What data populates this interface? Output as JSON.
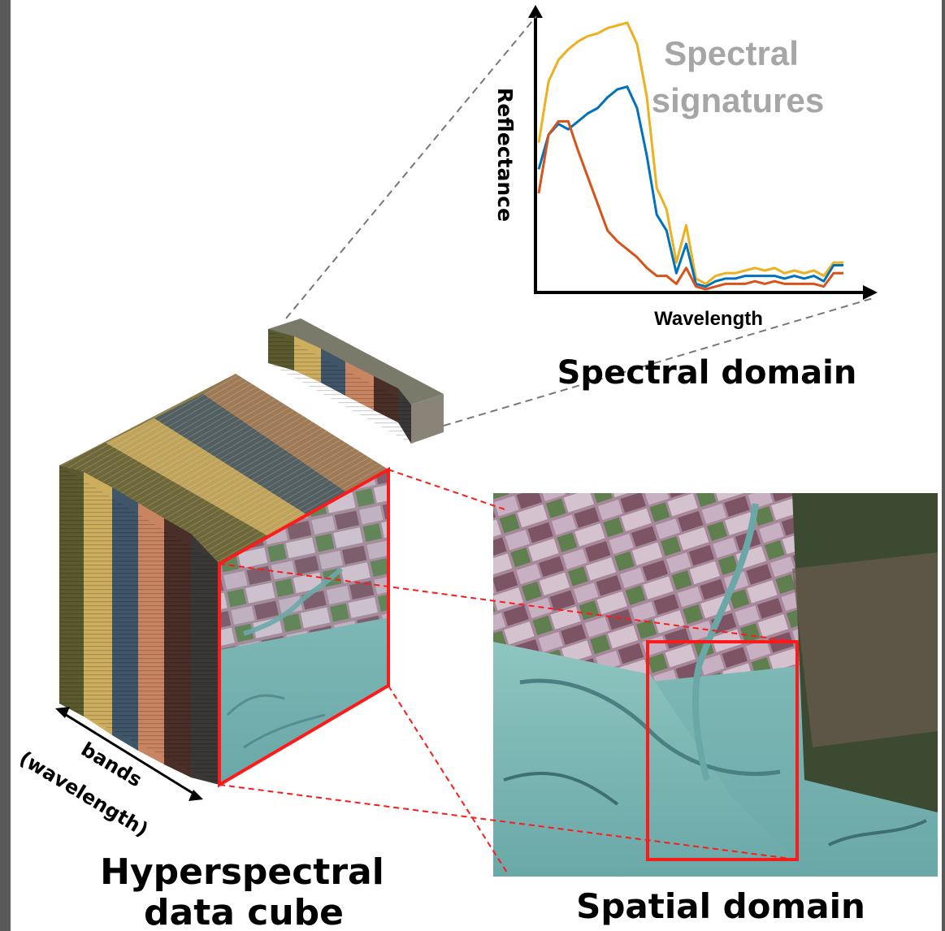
{
  "labels": {
    "spectral_signatures_line1": "Spectral",
    "spectral_signatures_line2": "signatures",
    "y_axis": "Reflectance",
    "x_axis": "Wavelength",
    "spectral_domain": "Spectral domain",
    "spatial_domain": "Spatial domain",
    "cube_line1": "Hyperspectral",
    "cube_line2": "data cube",
    "bands_line1": "bands",
    "bands_line2": "(wavelength)"
  },
  "colors": {
    "series_yellow": "#EDB120",
    "series_blue": "#0072BD",
    "series_orange": "#D95319",
    "highlight_red": "#FF1A1A",
    "title_gray": "#A6A6A6",
    "band_olive": "#5A5A2E",
    "band_gold": "#CDAE5E",
    "band_slate": "#3F5568",
    "band_salmon": "#C98562",
    "band_brown": "#4A2E28",
    "band_gray": "#3A3836"
  },
  "chart_data": {
    "type": "line",
    "title": "Spectral signatures",
    "xlabel": "Wavelength",
    "ylabel": "Reflectance",
    "grid": false,
    "series": [
      {
        "color": "#EDB120",
        "values": [
          0.55,
          0.78,
          0.86,
          0.9,
          0.93,
          0.95,
          0.96,
          0.98,
          0.99,
          1.0,
          0.92,
          0.72,
          0.38,
          0.3,
          0.1,
          0.24,
          0.04,
          0.02,
          0.05,
          0.06,
          0.06,
          0.07,
          0.08,
          0.07,
          0.08,
          0.06,
          0.07,
          0.06,
          0.07,
          0.05,
          0.1,
          0.1
        ]
      },
      {
        "color": "#0072BD",
        "values": [
          0.45,
          0.58,
          0.62,
          0.6,
          0.63,
          0.66,
          0.68,
          0.72,
          0.75,
          0.76,
          0.68,
          0.5,
          0.28,
          0.22,
          0.06,
          0.17,
          0.02,
          0.01,
          0.03,
          0.04,
          0.04,
          0.05,
          0.05,
          0.05,
          0.05,
          0.04,
          0.05,
          0.04,
          0.05,
          0.03,
          0.09,
          0.09
        ]
      },
      {
        "color": "#D95319",
        "values": [
          0.36,
          0.58,
          0.63,
          0.63,
          0.52,
          0.42,
          0.32,
          0.22,
          0.18,
          0.15,
          0.12,
          0.08,
          0.05,
          0.05,
          0.02,
          0.08,
          0.01,
          0.0,
          0.01,
          0.02,
          0.02,
          0.02,
          0.03,
          0.02,
          0.03,
          0.02,
          0.02,
          0.02,
          0.02,
          0.01,
          0.06,
          0.06
        ]
      }
    ]
  }
}
